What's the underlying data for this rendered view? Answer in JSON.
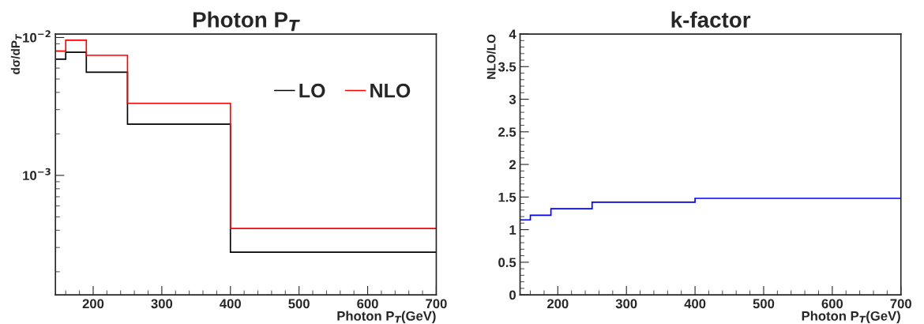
{
  "chart_data": [
    {
      "type": "histogram",
      "title": "Photon P$_{T}$",
      "xlabel": "Photon P$_{T}$(GeV)",
      "ylabel": "dσ/dP$_{T}$",
      "log": "y",
      "bins": [
        145,
        160,
        190,
        250,
        400,
        700
      ],
      "xlim": [
        145,
        700
      ],
      "xticks": [
        200,
        300,
        400,
        500,
        600,
        700
      ],
      "ylim": [
        0.000136,
        0.0106
      ],
      "yticks": [
        {
          "value": 0.001,
          "label": "10$^{−3}$"
        },
        {
          "value": 0.01,
          "label": "10$^{−2}$"
        }
      ],
      "legend": "top right",
      "series": [
        {
          "name": "LO",
          "color": "#000000",
          "values": [
            0.00697,
            0.00781,
            0.0056,
            0.00235,
            0.000277
          ]
        },
        {
          "name": "NLO",
          "color": "#ff0000",
          "values": [
            0.00798,
            0.00956,
            0.00743,
            0.00333,
            0.000412
          ]
        }
      ]
    },
    {
      "type": "histogram",
      "title": "k-factor",
      "xlabel": "Photon P$_{T}$(GeV)",
      "ylabel": "NLO/LO",
      "bins": [
        145,
        160,
        190,
        250,
        400,
        700
      ],
      "xlim": [
        145,
        700
      ],
      "xticks": [
        200,
        300,
        400,
        500,
        600,
        700
      ],
      "ylim": [
        0,
        4
      ],
      "yticks": [
        0,
        0.5,
        1,
        1.5,
        2,
        2.5,
        3,
        3.5,
        4
      ],
      "series": [
        {
          "color": "#0000ff",
          "values": [
            1.15,
            1.22,
            1.32,
            1.42,
            1.48
          ]
        }
      ]
    }
  ]
}
